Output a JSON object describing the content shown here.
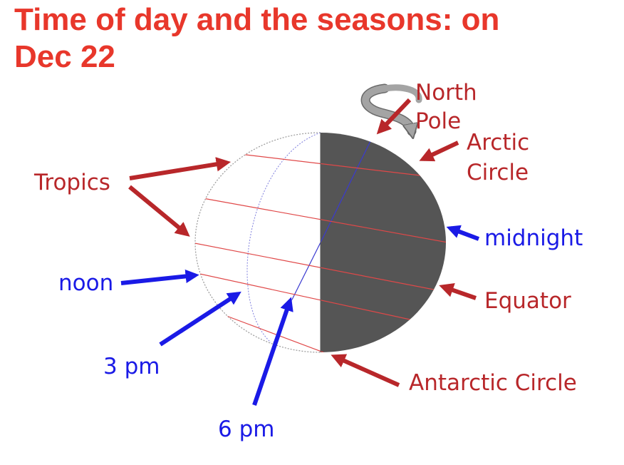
{
  "title": {
    "line1": "Time of day and the seasons:  on",
    "line2": "Dec 22"
  },
  "labels": {
    "north_pole_1": "North",
    "north_pole_2": "Pole",
    "arctic_1": "Arctic",
    "arctic_2": "Circle",
    "tropics": "Tropics",
    "midnight": "midnight",
    "noon": "noon",
    "equator": "Equator",
    "three_pm": "3 pm",
    "antarctic": "Antarctic Circle",
    "six_pm": "6 pm"
  },
  "colors": {
    "title": "#e8372b",
    "red_label": "#b8272a",
    "blue_label": "#1a1ae6",
    "night": "#555555",
    "lat_line": "#e04848",
    "meridian": "#8a8ae0",
    "rotation_arrow": "#9a9a9a"
  }
}
